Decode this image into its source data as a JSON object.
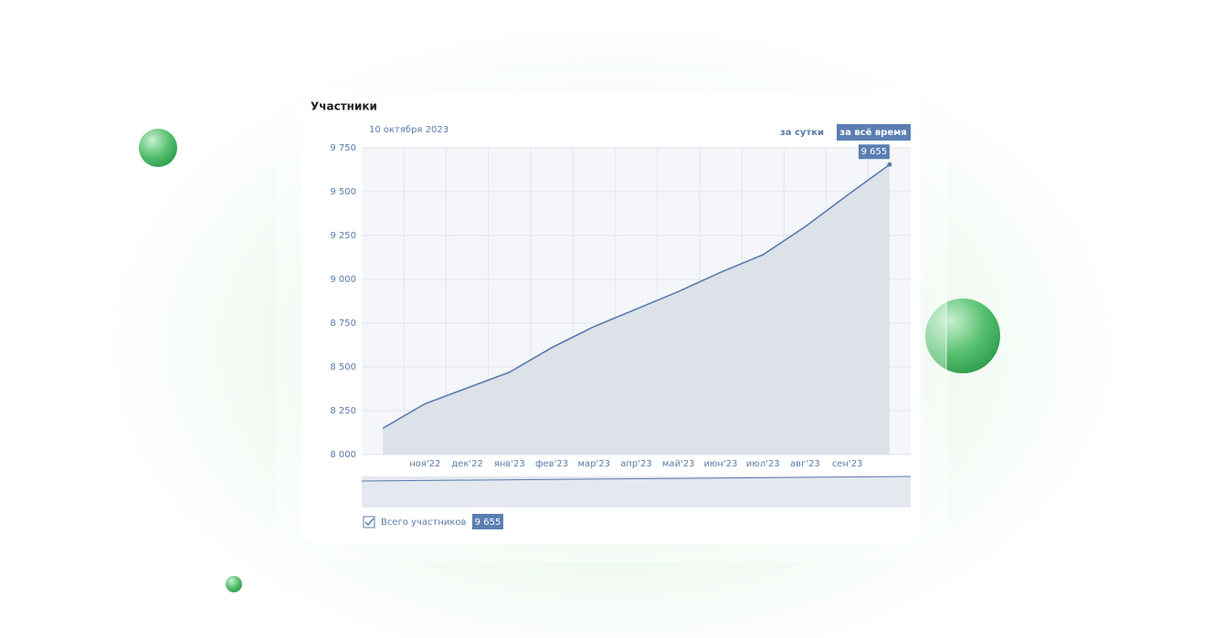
{
  "chart_data": {
    "type": "line",
    "title": "Участники",
    "date_label": "10 октября 2023",
    "buttons": [
      "за сутки",
      "за всё время"
    ],
    "categories": [
      null,
      "ноя'22",
      "дек'22",
      "янв'23",
      "фев'23",
      "мар'23",
      "апр'23",
      "май'23",
      "июн'23",
      "июл'23",
      "авг'23",
      "сен'23",
      null
    ],
    "series": [
      {
        "name": "Всего участников",
        "color": "#5a7bab",
        "values": [
          8150,
          8290,
          8380,
          8470,
          8610,
          8730,
          8830,
          8930,
          9040,
          9140,
          9300,
          9480,
          9655
        ],
        "value_labels": [
          null,
          null,
          null,
          null,
          null,
          null,
          null,
          null,
          null,
          null,
          null,
          null,
          "9 655"
        ]
      }
    ],
    "ylim": [
      8000,
      9750
    ],
    "yticks": [
      {
        "value": 8000,
        "label": "8 000"
      },
      {
        "value": 8250,
        "label": "8 250"
      },
      {
        "value": 8500,
        "label": "8 500"
      },
      {
        "value": 8750,
        "label": "8 750"
      },
      {
        "value": 9000,
        "label": "9 000"
      },
      {
        "value": 9250,
        "label": "9 250"
      },
      {
        "value": 9500,
        "label": "9 500"
      },
      {
        "value": 9750,
        "label": "9 750"
      }
    ],
    "grid": true
  }
}
